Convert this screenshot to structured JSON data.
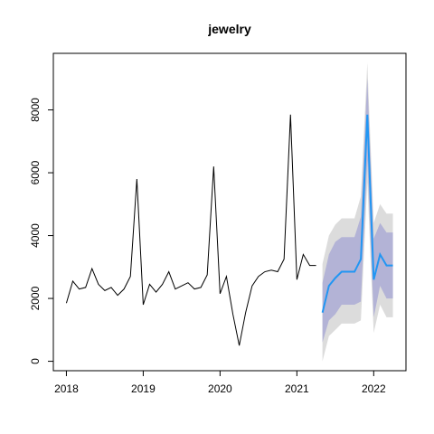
{
  "chart_data": {
    "type": "line",
    "title": "jewelry",
    "xlabel": "",
    "ylabel": "",
    "xlim": [
      2017.83,
      2022.42
    ],
    "ylim": [
      -300,
      9800
    ],
    "x_ticks": [
      2018,
      2019,
      2020,
      2021,
      2022
    ],
    "y_ticks": [
      0,
      2000,
      4000,
      6000,
      8000
    ],
    "grid": false,
    "colors": {
      "history": "#000000",
      "forecast": "#2196F3",
      "band80": "#B3B3D6",
      "band95": "#DCDCDC"
    },
    "history": {
      "x": [
        2018.0,
        2018.083,
        2018.167,
        2018.25,
        2018.333,
        2018.417,
        2018.5,
        2018.583,
        2018.667,
        2018.75,
        2018.833,
        2018.917,
        2019.0,
        2019.083,
        2019.167,
        2019.25,
        2019.333,
        2019.417,
        2019.5,
        2019.583,
        2019.667,
        2019.75,
        2019.833,
        2019.917,
        2020.0,
        2020.083,
        2020.167,
        2020.25,
        2020.333,
        2020.417,
        2020.5,
        2020.583,
        2020.667,
        2020.75,
        2020.833,
        2020.917,
        2021.0,
        2021.083,
        2021.167,
        2021.25
      ],
      "values": [
        1850,
        2550,
        2300,
        2350,
        2950,
        2450,
        2250,
        2350,
        2100,
        2300,
        2700,
        5800,
        1800,
        2450,
        2200,
        2450,
        2850,
        2300,
        2400,
        2500,
        2300,
        2350,
        2750,
        6200,
        2150,
        2700,
        1500,
        500,
        1550,
        2400,
        2700,
        2850,
        2900,
        2850,
        3250,
        7850,
        2600,
        3400,
        3050,
        3050
      ]
    },
    "forecast": {
      "x": [
        2021.333,
        2021.417,
        2021.5,
        2021.583,
        2021.667,
        2021.75,
        2021.833,
        2021.917,
        2022.0,
        2022.083,
        2022.167,
        2022.25
      ],
      "mean": [
        1550,
        2400,
        2650,
        2850,
        2850,
        2850,
        3250,
        7850,
        2600,
        3400,
        3050,
        3050
      ],
      "lo80": [
        600,
        1300,
        1500,
        1800,
        1800,
        1800,
        1900,
        6400,
        1400,
        2400,
        2000,
        2000
      ],
      "hi80": [
        2500,
        3400,
        3800,
        3950,
        3950,
        3950,
        4600,
        9000,
        3900,
        4400,
        4100,
        4100
      ],
      "lo95": [
        0,
        800,
        1000,
        1200,
        1200,
        1200,
        1300,
        5700,
        900,
        1800,
        1400,
        1400
      ],
      "hi95": [
        3100,
        4000,
        4350,
        4550,
        4550,
        4550,
        5250,
        9500,
        4400,
        5000,
        4700,
        4700
      ]
    }
  }
}
